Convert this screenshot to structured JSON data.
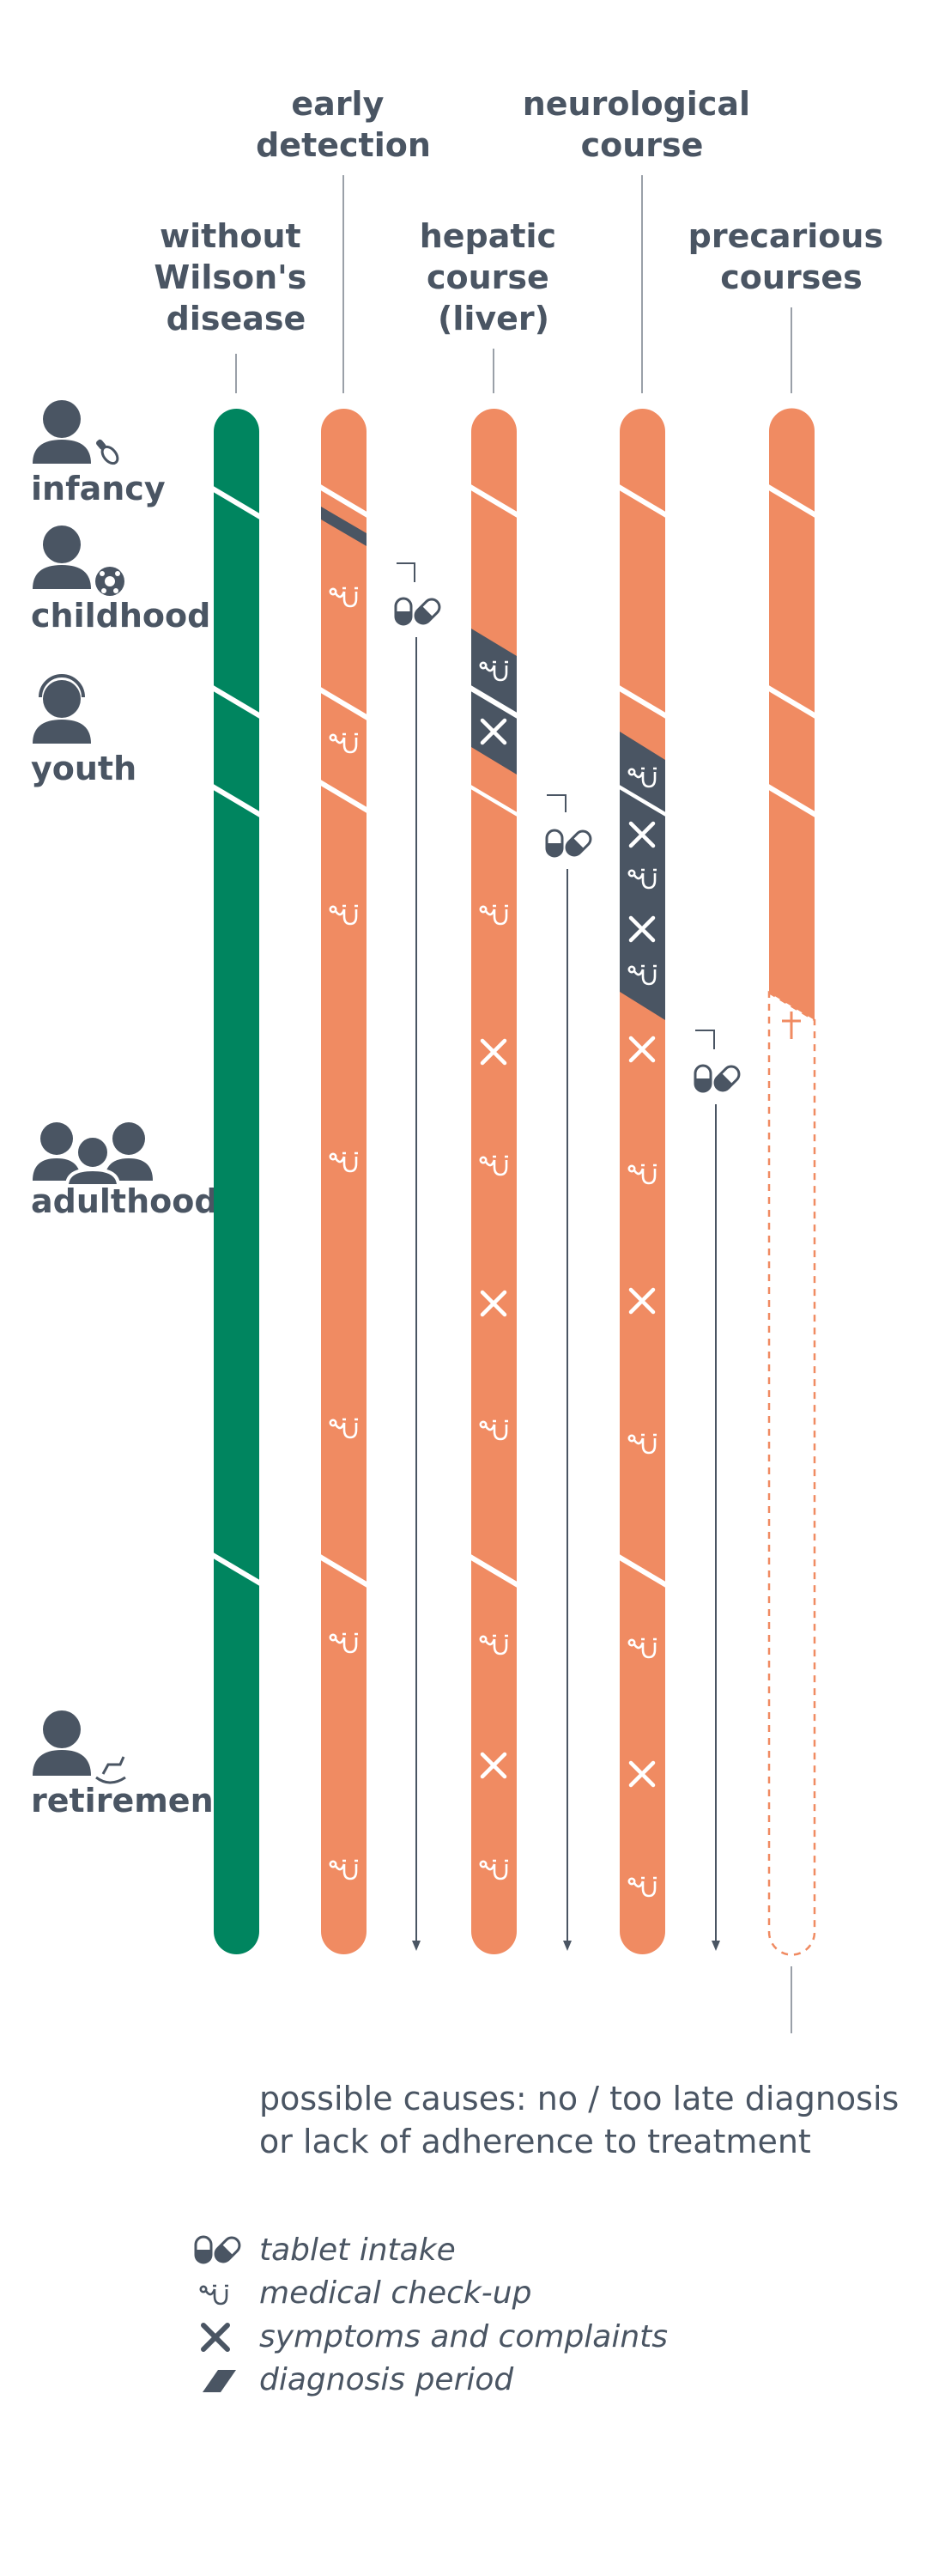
{
  "columns": [
    {
      "id": "without",
      "header": [
        "without",
        "Wilson's",
        "disease"
      ]
    },
    {
      "id": "early",
      "header": [
        "early",
        "detection"
      ]
    },
    {
      "id": "hepatic",
      "header": [
        "hepatic",
        "course",
        "(liver)"
      ]
    },
    {
      "id": "neuro",
      "header": [
        "neurological",
        "course"
      ]
    },
    {
      "id": "precarious",
      "header": [
        "precarious",
        "courses"
      ]
    }
  ],
  "stages": [
    {
      "id": "infancy",
      "label": "infancy",
      "icon": "person-pacifier-icon"
    },
    {
      "id": "childhood",
      "label": "childhood",
      "icon": "person-ball-icon"
    },
    {
      "id": "youth",
      "label": "youth",
      "icon": "person-headset-icon"
    },
    {
      "id": "adulthood",
      "label": "adulthood",
      "icon": "group-icon"
    },
    {
      "id": "retirement",
      "label": "retirement",
      "icon": "person-rocking-horse-icon"
    }
  ],
  "note": {
    "line1": "possible causes: no / too late diagnosis",
    "line2": "or lack of adherence to treatment"
  },
  "legend": [
    {
      "icon": "pill-icon",
      "label": "tablet intake"
    },
    {
      "icon": "stethoscope-icon",
      "label": "medical check-up"
    },
    {
      "icon": "cross-icon",
      "label": "symptoms and complaints"
    },
    {
      "icon": "parallelogram-icon",
      "label": "diagnosis period"
    }
  ],
  "colors": {
    "healthy": "#00855f",
    "disease": "#f08b62",
    "diagnosis": "#4a5563",
    "text": "#4a5563"
  }
}
